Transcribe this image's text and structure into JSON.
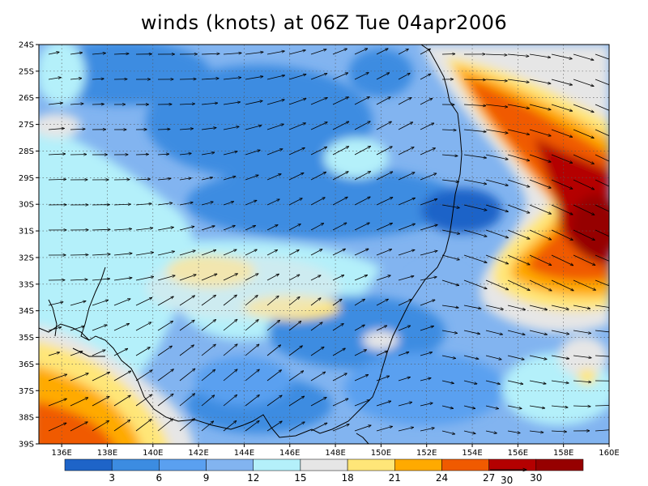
{
  "title": "winds (knots) at 06Z Tue 04apr2006",
  "map": {
    "lon_range": [
      135,
      160
    ],
    "lat_range": [
      -39,
      -24
    ],
    "lat_ticks": [
      {
        "value": -24,
        "label": "24S"
      },
      {
        "value": -25,
        "label": "25S"
      },
      {
        "value": -26,
        "label": "26S"
      },
      {
        "value": -27,
        "label": "27S"
      },
      {
        "value": -28,
        "label": "28S"
      },
      {
        "value": -29,
        "label": "29S"
      },
      {
        "value": -30,
        "label": "30S"
      },
      {
        "value": -31,
        "label": "31S"
      },
      {
        "value": -32,
        "label": "32S"
      },
      {
        "value": -33,
        "label": "33S"
      },
      {
        "value": -34,
        "label": "34S"
      },
      {
        "value": -35,
        "label": "35S"
      },
      {
        "value": -36,
        "label": "36S"
      },
      {
        "value": -37,
        "label": "37S"
      },
      {
        "value": -38,
        "label": "38S"
      },
      {
        "value": -39,
        "label": "39S"
      }
    ],
    "lon_ticks": [
      {
        "value": 136,
        "label": "136E"
      },
      {
        "value": 138,
        "label": "138E"
      },
      {
        "value": 140,
        "label": "140E"
      },
      {
        "value": 142,
        "label": "142E"
      },
      {
        "value": 144,
        "label": "144E"
      },
      {
        "value": 146,
        "label": "146E"
      },
      {
        "value": 148,
        "label": "148E"
      },
      {
        "value": 150,
        "label": "150E"
      },
      {
        "value": 152,
        "label": "152E"
      },
      {
        "value": 154,
        "label": "154E"
      },
      {
        "value": 156,
        "label": "156E"
      },
      {
        "value": 158,
        "label": "158E"
      },
      {
        "value": 160,
        "label": "160E"
      }
    ],
    "grid": "dotted"
  },
  "colorbar": {
    "labels": [
      "3",
      "6",
      "9",
      "12",
      "15",
      "18",
      "21",
      "24",
      "27",
      "30"
    ],
    "colors": [
      "#1e64c8",
      "#3c8ce1",
      "#5aa0f0",
      "#82b4f0",
      "#b4f0fa",
      "#e6e6e6",
      "#ffe678",
      "#ffaa00",
      "#f05a00",
      "#b40000",
      "#960000"
    ]
  },
  "reference_vector": {
    "label": "30",
    "value": 30
  }
}
